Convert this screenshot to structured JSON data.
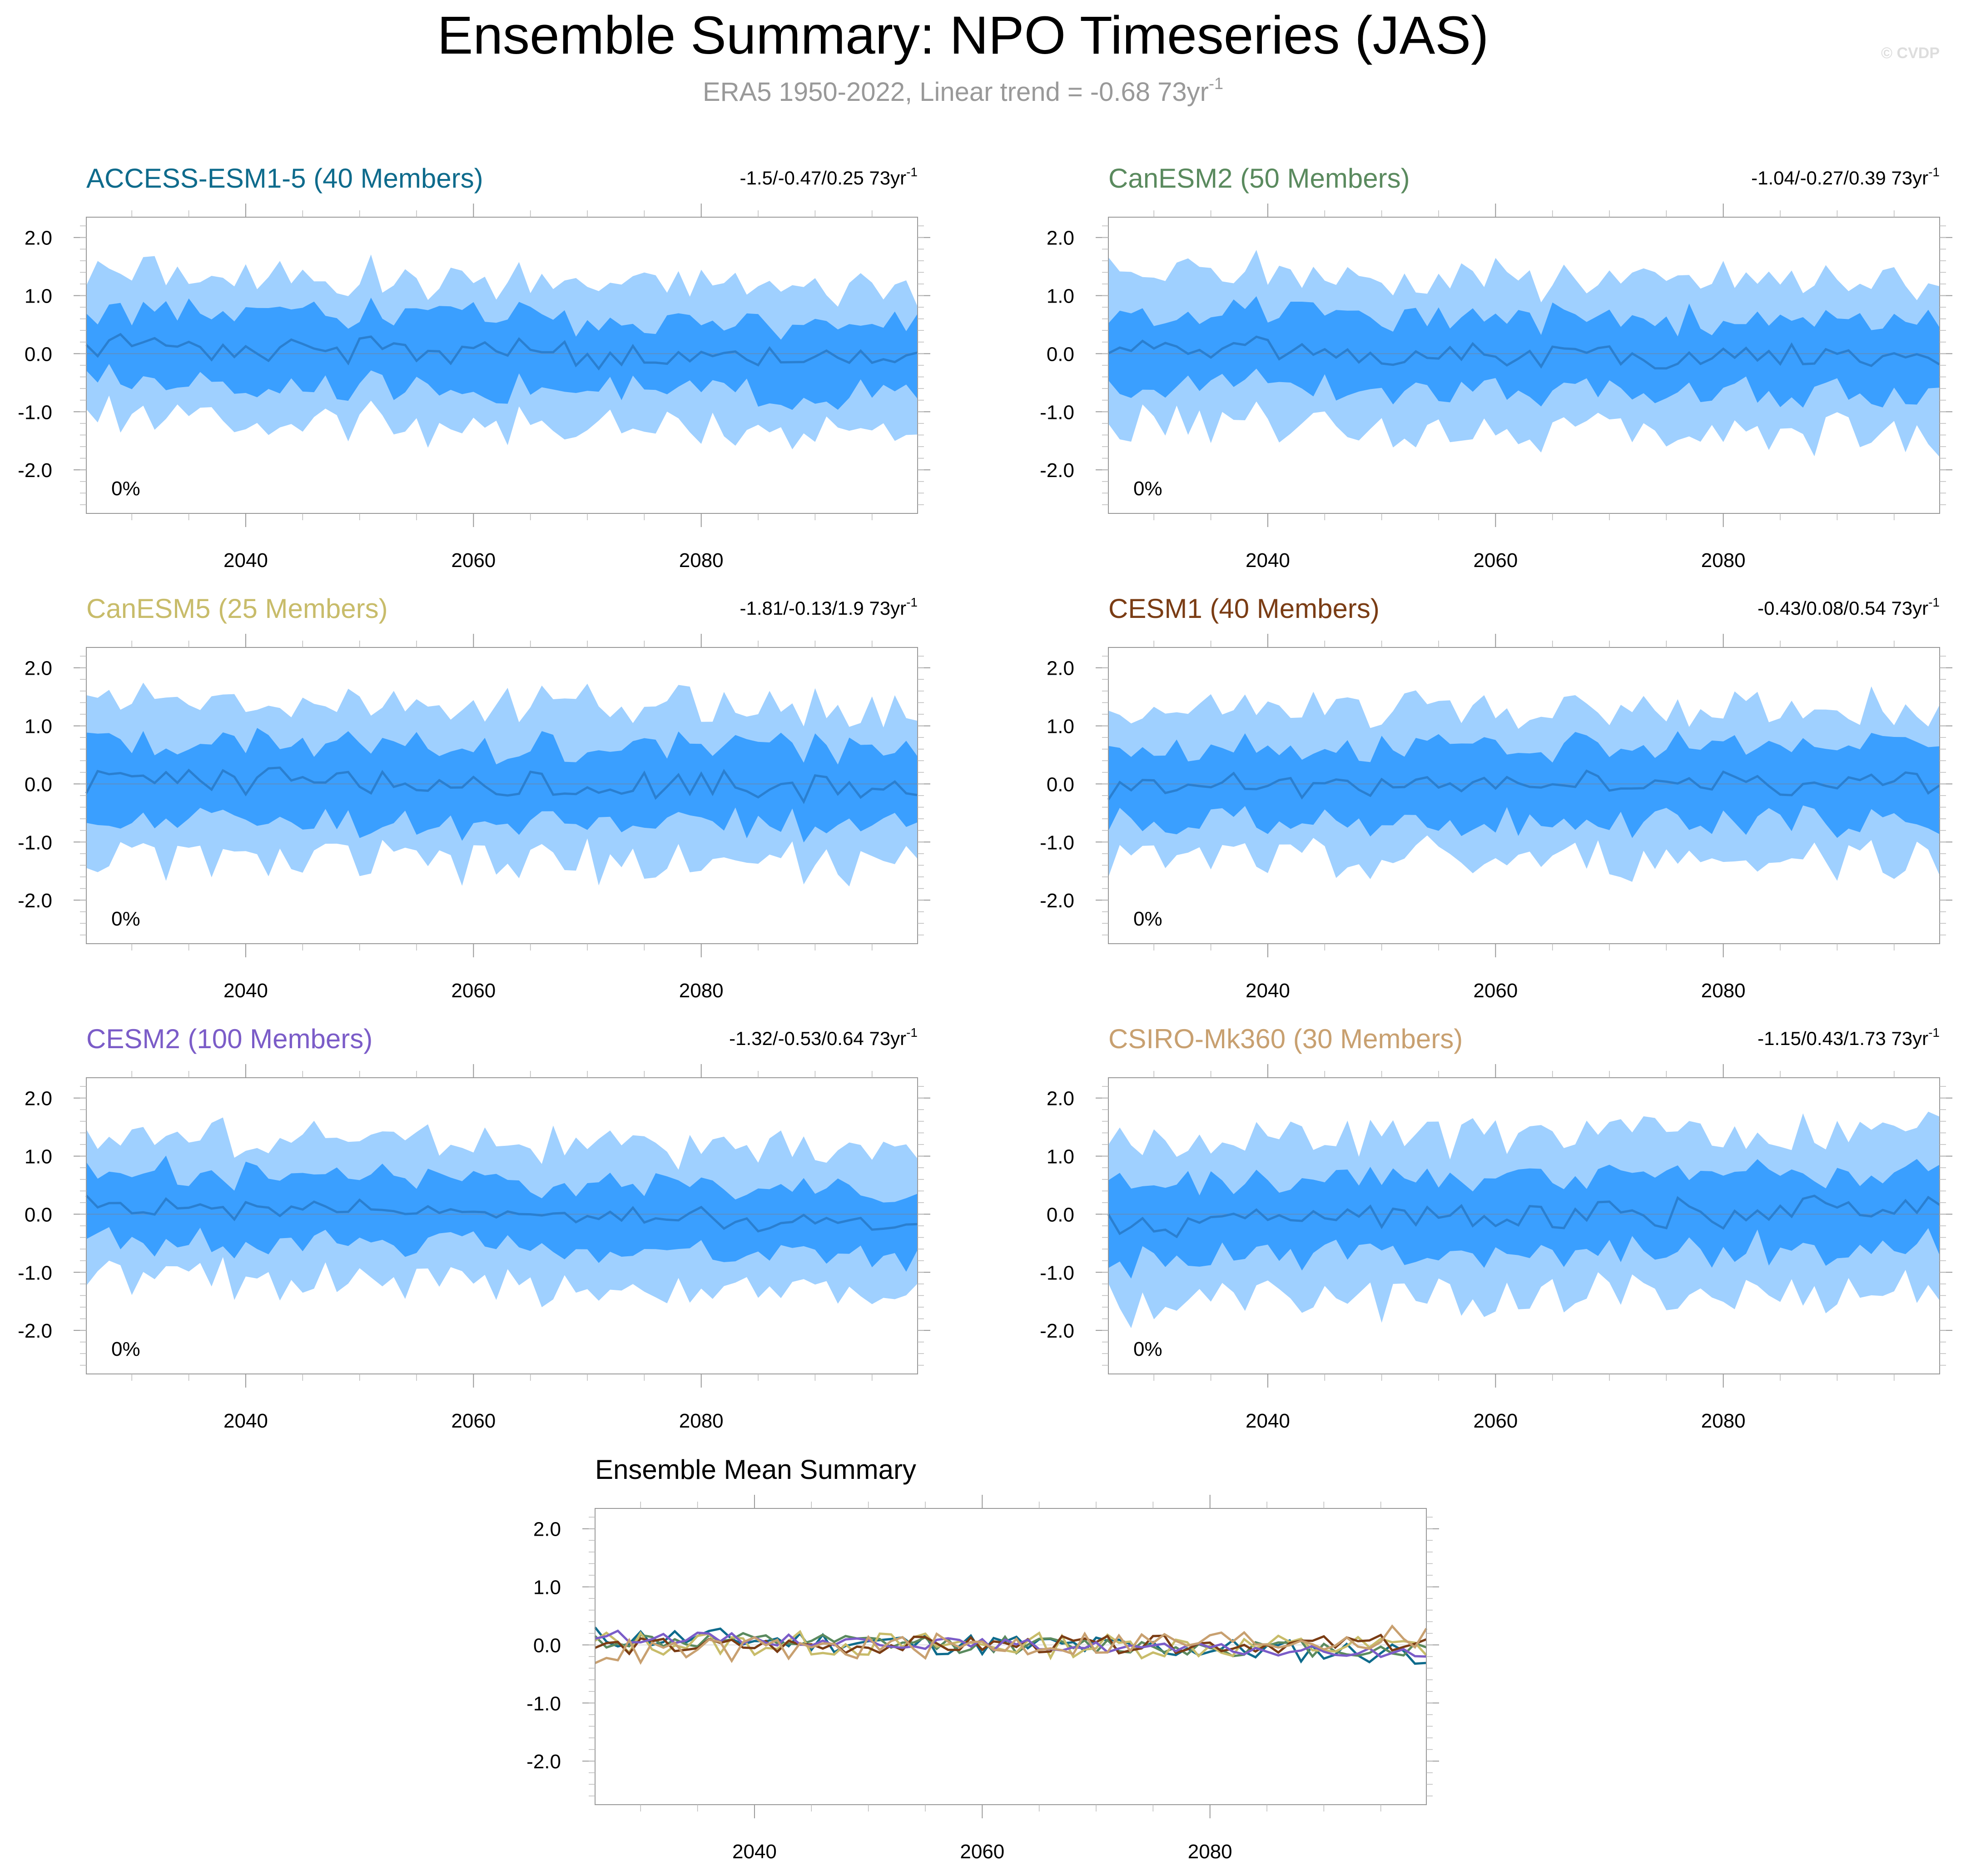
{
  "header": {
    "title": "Ensemble Summary: NPO Timeseries (JAS)",
    "subtitle_main": "ERA5 1950-2022, Linear trend = -0.68 73yr",
    "subtitle_sup": "-1",
    "copyright": "© CVDP"
  },
  "colors": {
    "outer_band": "#9fd0ff",
    "inner_band": "#3a9fff",
    "mean_line": "#2a7fd0",
    "zero_line": "#5a8fc8"
  },
  "chart_data": [
    {
      "type": "area",
      "title": "ACCESS-ESM1-5 (40 Members)",
      "title_color": "#0e6b8c",
      "trend_text": "-1.5/-0.47/0.25 73yr",
      "trend_sup": "-1",
      "percent_label": "0%",
      "x_range": [
        2026,
        2099
      ],
      "x_ticks": [
        "2040",
        "2060",
        "2080"
      ],
      "ylim": [
        -2.75,
        2.35
      ],
      "y_ticks": [
        "2.0",
        "1.0",
        "0.0",
        "-1.0",
        "-2.0"
      ],
      "series": [
        {
          "role": "outer_band",
          "lower_seed": 1,
          "amp": 1.25,
          "trend": -0.47
        },
        {
          "role": "inner_band",
          "amp": 0.62
        },
        {
          "role": "ensemble_mean",
          "amp": 0.18
        }
      ]
    },
    {
      "type": "area",
      "title": "CanESM2 (50 Members)",
      "title_color": "#5a8a5e",
      "trend_text": "-1.04/-0.27/0.39 73yr",
      "trend_sup": "-1",
      "percent_label": "0%",
      "x_range": [
        2026,
        2099
      ],
      "x_ticks": [
        "2040",
        "2060",
        "2080"
      ],
      "ylim": [
        -2.75,
        2.35
      ],
      "y_ticks": [
        "2.0",
        "1.0",
        "0.0",
        "-1.0",
        "-2.0"
      ],
      "series": [
        {
          "role": "outer_band",
          "lower_seed": 2,
          "amp": 1.3,
          "trend": -0.27
        },
        {
          "role": "inner_band",
          "amp": 0.62
        },
        {
          "role": "ensemble_mean",
          "amp": 0.14
        }
      ]
    },
    {
      "type": "area",
      "title": "CanESM5 (25 Members)",
      "title_color": "#c8bc6a",
      "trend_text": "-1.81/-0.13/1.9 73yr",
      "trend_sup": "-1",
      "percent_label": "0%",
      "x_range": [
        2026,
        2099
      ],
      "x_ticks": [
        "2040",
        "2060",
        "2080"
      ],
      "ylim": [
        -2.75,
        2.35
      ],
      "y_ticks": [
        "2.0",
        "1.0",
        "0.0",
        "-1.0",
        "-2.0"
      ],
      "series": [
        {
          "role": "outer_band",
          "lower_seed": 3,
          "amp": 1.35,
          "trend": -0.13
        },
        {
          "role": "inner_band",
          "amp": 0.68
        },
        {
          "role": "ensemble_mean",
          "amp": 0.2
        }
      ]
    },
    {
      "type": "area",
      "title": "CESM1 (40 Members)",
      "title_color": "#7a3c14",
      "trend_text": "-0.43/0.08/0.54 73yr",
      "trend_sup": "-1",
      "percent_label": "0%",
      "x_range": [
        2026,
        2099
      ],
      "x_ticks": [
        "2040",
        "2060",
        "2080"
      ],
      "ylim": [
        -2.75,
        2.35
      ],
      "y_ticks": [
        "2.0",
        "1.0",
        "0.0",
        "-1.0",
        "-2.0"
      ],
      "series": [
        {
          "role": "outer_band",
          "lower_seed": 4,
          "amp": 1.3,
          "trend": 0.08
        },
        {
          "role": "inner_band",
          "amp": 0.64
        },
        {
          "role": "ensemble_mean",
          "amp": 0.14
        }
      ]
    },
    {
      "type": "area",
      "title": "CESM2 (100 Members)",
      "title_color": "#7b5cc8",
      "trend_text": "-1.32/-0.53/0.64 73yr",
      "trend_sup": "-1",
      "percent_label": "0%",
      "x_range": [
        2026,
        2099
      ],
      "x_ticks": [
        "2040",
        "2060",
        "2080"
      ],
      "ylim": [
        -2.75,
        2.35
      ],
      "y_ticks": [
        "2.0",
        "1.0",
        "0.0",
        "-1.0",
        "-2.0"
      ],
      "series": [
        {
          "role": "outer_band",
          "lower_seed": 5,
          "amp": 1.22,
          "trend": -0.53
        },
        {
          "role": "inner_band",
          "amp": 0.58
        },
        {
          "role": "ensemble_mean",
          "amp": 0.1
        }
      ]
    },
    {
      "type": "area",
      "title": "CSIRO-Mk360 (30 Members)",
      "title_color": "#c8a070",
      "trend_text": "-1.15/0.43/1.73 73yr",
      "trend_sup": "-1",
      "percent_label": "0%",
      "x_range": [
        2026,
        2099
      ],
      "x_ticks": [
        "2040",
        "2060",
        "2080"
      ],
      "ylim": [
        -2.75,
        2.35
      ],
      "y_ticks": [
        "2.0",
        "1.0",
        "0.0",
        "-1.0",
        "-2.0"
      ],
      "series": [
        {
          "role": "outer_band",
          "lower_seed": 6,
          "amp": 1.4,
          "trend": 0.43
        },
        {
          "role": "inner_band",
          "amp": 0.66
        },
        {
          "role": "ensemble_mean",
          "amp": 0.2
        }
      ]
    },
    {
      "type": "line",
      "title": "Ensemble Mean Summary",
      "x_range": [
        2026,
        2099
      ],
      "x_ticks": [
        "2040",
        "2060",
        "2080"
      ],
      "ylim": [
        -2.75,
        2.35
      ],
      "y_ticks": [
        "2.0",
        "1.0",
        "0.0",
        "-1.0",
        "-2.0"
      ],
      "series": [
        {
          "color": "#0e6b8c",
          "seed": 11,
          "amp": 0.2,
          "trend": -0.47
        },
        {
          "color": "#5a8a5e",
          "seed": 12,
          "amp": 0.15,
          "trend": -0.27
        },
        {
          "color": "#c8bc6a",
          "seed": 13,
          "amp": 0.22,
          "trend": -0.13
        },
        {
          "color": "#7a3c14",
          "seed": 14,
          "amp": 0.15,
          "trend": 0.08
        },
        {
          "color": "#7b5cc8",
          "seed": 15,
          "amp": 0.1,
          "trend": -0.53
        },
        {
          "color": "#c8a070",
          "seed": 16,
          "amp": 0.22,
          "trend": 0.43
        }
      ]
    }
  ]
}
